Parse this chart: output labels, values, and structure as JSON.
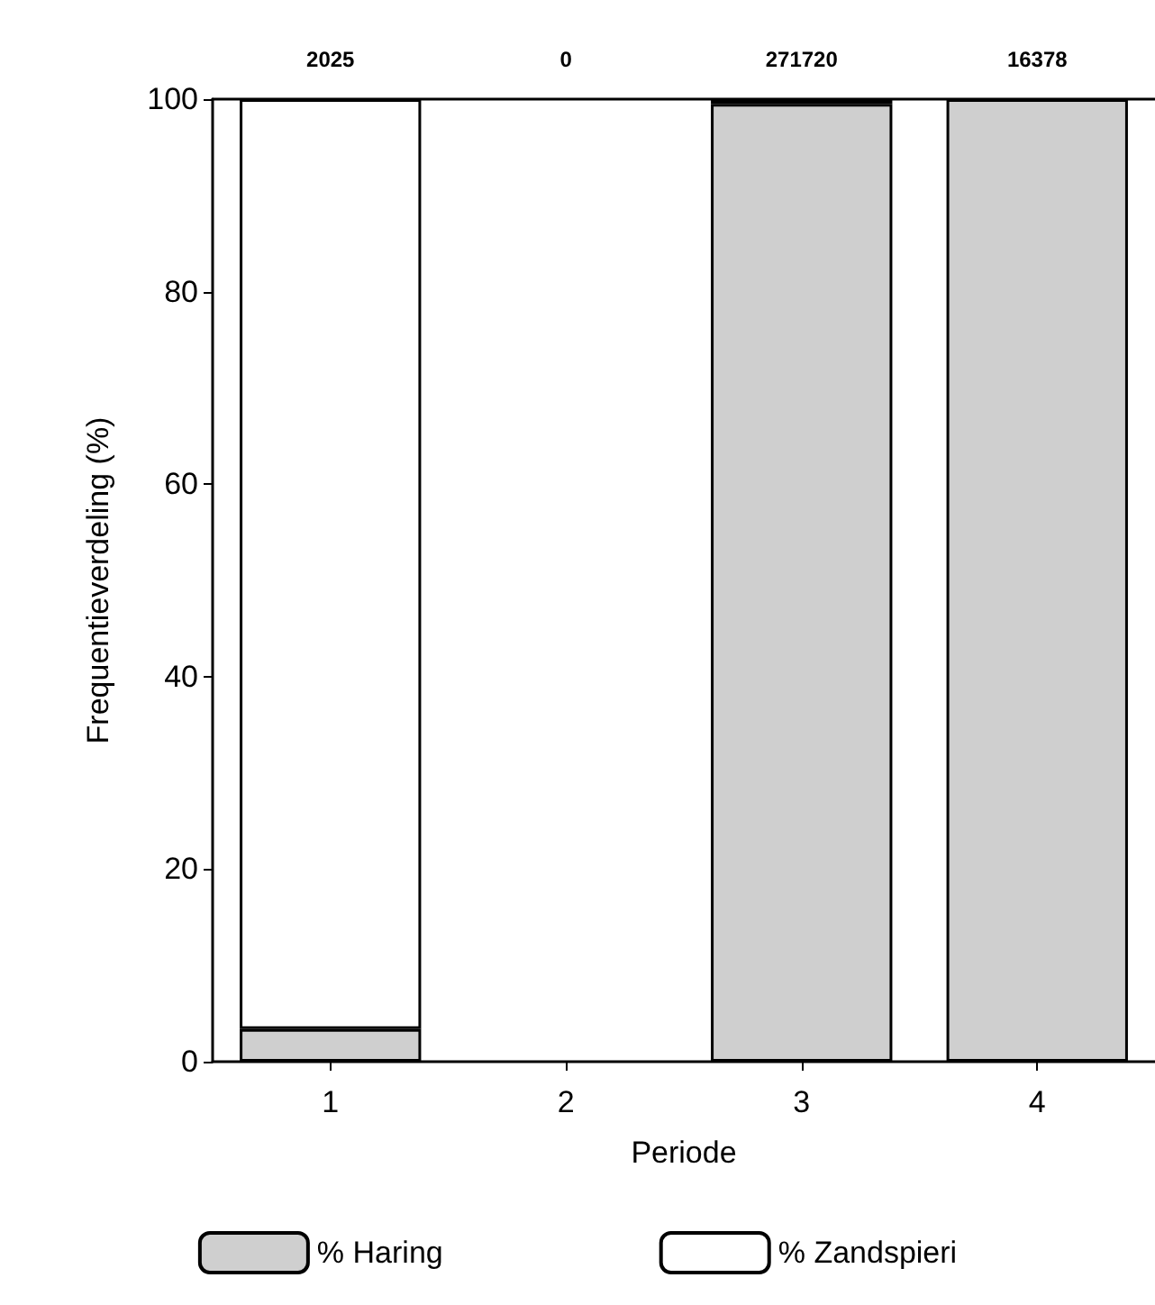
{
  "chart_data": {
    "type": "bar",
    "stacked": true,
    "xlabel": "Periode",
    "ylabel": "Frequentieverdeling (%)",
    "categories": [
      "1",
      "2",
      "3",
      "4"
    ],
    "series": [
      {
        "name": "% Haring",
        "color": "#cfcfcf",
        "values": [
          3.4,
          0,
          99.5,
          100
        ]
      },
      {
        "name": "% Zandspieri",
        "color": "#ffffff",
        "values": [
          96.6,
          0,
          0.5,
          0
        ]
      }
    ],
    "ylim": [
      0,
      100
    ],
    "yticks": [
      0,
      20,
      40,
      60,
      80,
      100
    ],
    "grid": false,
    "legend": "bottom",
    "annotations": [
      "2025",
      "0",
      "271720",
      "16378"
    ]
  }
}
